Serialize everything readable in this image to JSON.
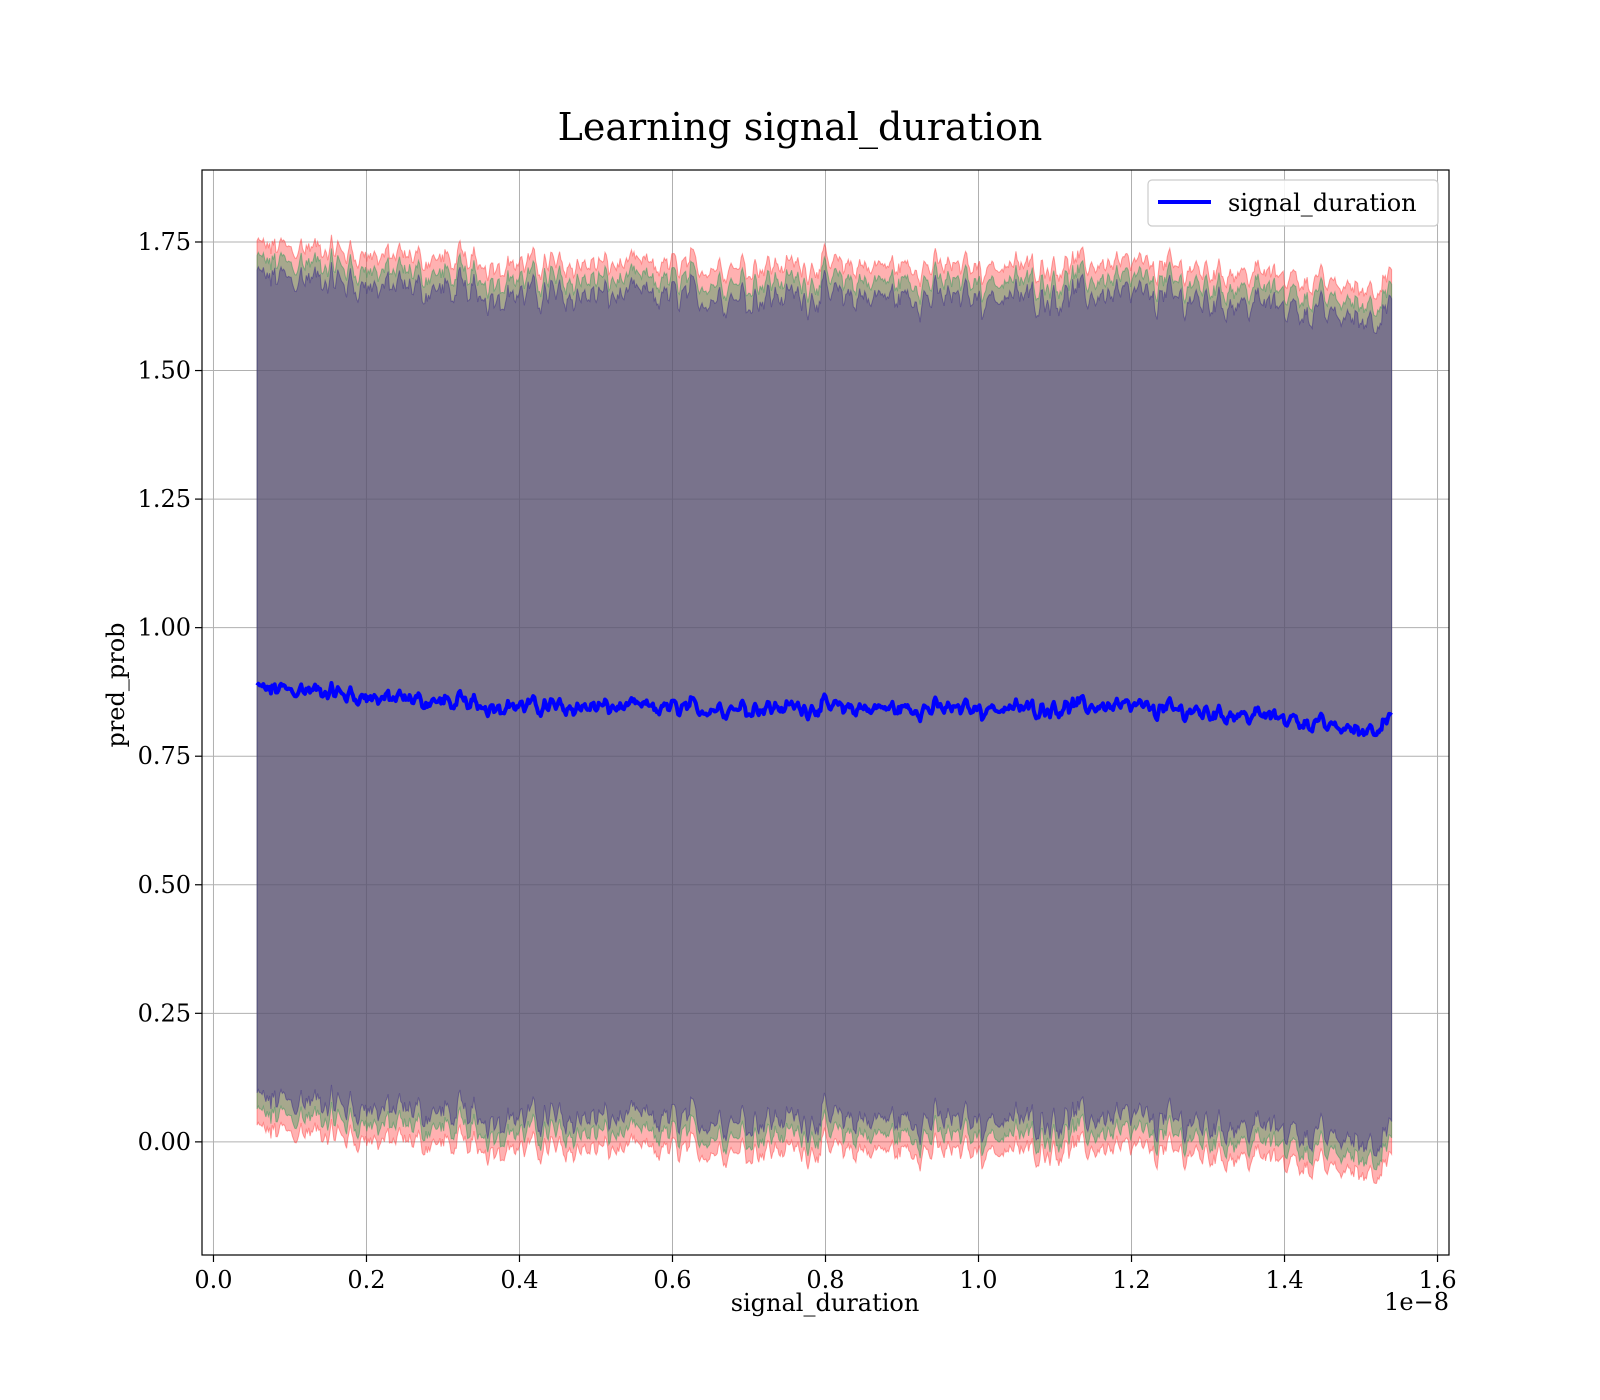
{
  "chart_data": {
    "type": "line",
    "title": "Learning signal_duration",
    "xlabel": "signal_duration",
    "ylabel": "pred_prob",
    "x_offset_text": "1e−8",
    "xlim": [
      -0.015,
      1.615
    ],
    "ylim": [
      -0.22,
      1.89
    ],
    "x_ticks": [
      0.0,
      0.2,
      0.4,
      0.6,
      0.8,
      1.0,
      1.2,
      1.4,
      1.6
    ],
    "x_tick_labels": [
      "0.0",
      "0.2",
      "0.4",
      "0.6",
      "0.8",
      "1.0",
      "1.2",
      "1.4",
      "1.6"
    ],
    "y_ticks": [
      0.0,
      0.25,
      0.5,
      0.75,
      1.0,
      1.25,
      1.5,
      1.75
    ],
    "y_tick_labels": [
      "0.00",
      "0.25",
      "0.50",
      "0.75",
      "1.00",
      "1.25",
      "1.50",
      "1.75"
    ],
    "grid": true,
    "legend_position": "top-right",
    "x_range": [
      0.057,
      1.54
    ],
    "series": [
      {
        "name": "signal_duration",
        "color": "#0000ff",
        "x": [
          0.057,
          0.1,
          0.15,
          0.2,
          0.25,
          0.3,
          0.35,
          0.4,
          0.45,
          0.5,
          0.55,
          0.6,
          0.65,
          0.7,
          0.75,
          0.8,
          0.85,
          0.9,
          0.95,
          1.0,
          1.05,
          1.1,
          1.15,
          1.2,
          1.25,
          1.3,
          1.35,
          1.4,
          1.45,
          1.5,
          1.54
        ],
        "y": [
          0.88,
          0.88,
          0.875,
          0.865,
          0.86,
          0.855,
          0.85,
          0.848,
          0.846,
          0.845,
          0.845,
          0.843,
          0.843,
          0.845,
          0.845,
          0.845,
          0.843,
          0.842,
          0.843,
          0.843,
          0.843,
          0.845,
          0.848,
          0.845,
          0.84,
          0.835,
          0.83,
          0.825,
          0.81,
          0.8,
          0.82
        ]
      }
    ],
    "bands": [
      {
        "color": "#ff4444",
        "x": [
          0.057,
          0.1,
          0.15,
          0.2,
          0.25,
          0.3,
          0.35,
          0.4,
          0.45,
          0.5,
          0.55,
          0.6,
          0.65,
          0.7,
          0.75,
          0.8,
          0.85,
          0.9,
          0.95,
          1.0,
          1.05,
          1.1,
          1.15,
          1.2,
          1.25,
          1.3,
          1.35,
          1.4,
          1.45,
          1.5,
          1.54
        ],
        "upper": [
          1.74,
          1.74,
          1.735,
          1.725,
          1.72,
          1.715,
          1.71,
          1.708,
          1.706,
          1.705,
          1.705,
          1.703,
          1.703,
          1.705,
          1.705,
          1.705,
          1.703,
          1.702,
          1.703,
          1.703,
          1.703,
          1.705,
          1.708,
          1.705,
          1.7,
          1.695,
          1.69,
          1.685,
          1.67,
          1.66,
          1.68
        ],
        "lower": [
          0.02,
          0.02,
          0.015,
          0.005,
          0.0,
          -0.005,
          -0.01,
          -0.012,
          -0.014,
          -0.015,
          -0.015,
          -0.017,
          -0.017,
          -0.015,
          -0.015,
          -0.015,
          -0.017,
          -0.018,
          -0.017,
          -0.017,
          -0.017,
          -0.015,
          -0.012,
          -0.015,
          -0.02,
          -0.025,
          -0.03,
          -0.035,
          -0.05,
          -0.06,
          -0.04
        ]
      },
      {
        "color": "#2e9a5a",
        "x": [
          0.057,
          0.1,
          0.15,
          0.2,
          0.25,
          0.3,
          0.35,
          0.4,
          0.45,
          0.5,
          0.55,
          0.6,
          0.65,
          0.7,
          0.75,
          0.8,
          0.85,
          0.9,
          0.95,
          1.0,
          1.05,
          1.1,
          1.15,
          1.2,
          1.25,
          1.3,
          1.35,
          1.4,
          1.45,
          1.5,
          1.54
        ],
        "upper": [
          1.71,
          1.71,
          1.705,
          1.695,
          1.69,
          1.685,
          1.68,
          1.678,
          1.676,
          1.675,
          1.675,
          1.673,
          1.673,
          1.675,
          1.675,
          1.675,
          1.673,
          1.672,
          1.673,
          1.673,
          1.673,
          1.675,
          1.678,
          1.675,
          1.67,
          1.665,
          1.66,
          1.655,
          1.64,
          1.63,
          1.65
        ],
        "lower": [
          0.05,
          0.05,
          0.045,
          0.035,
          0.03,
          0.025,
          0.02,
          0.018,
          0.016,
          0.015,
          0.015,
          0.013,
          0.013,
          0.015,
          0.015,
          0.015,
          0.013,
          0.012,
          0.013,
          0.013,
          0.013,
          0.015,
          0.018,
          0.015,
          0.01,
          0.005,
          0.0,
          -0.005,
          -0.02,
          -0.03,
          -0.01
        ]
      },
      {
        "color": "#3a2a8a",
        "x": [
          0.057,
          0.1,
          0.15,
          0.2,
          0.25,
          0.3,
          0.35,
          0.4,
          0.45,
          0.5,
          0.55,
          0.6,
          0.65,
          0.7,
          0.75,
          0.8,
          0.85,
          0.9,
          0.95,
          1.0,
          1.05,
          1.1,
          1.15,
          1.2,
          1.25,
          1.3,
          1.35,
          1.4,
          1.45,
          1.5,
          1.54
        ],
        "upper": [
          1.68,
          1.68,
          1.675,
          1.665,
          1.66,
          1.655,
          1.65,
          1.648,
          1.646,
          1.645,
          1.645,
          1.643,
          1.643,
          1.645,
          1.645,
          1.645,
          1.643,
          1.642,
          1.643,
          1.643,
          1.643,
          1.645,
          1.648,
          1.645,
          1.64,
          1.635,
          1.63,
          1.625,
          1.61,
          1.6,
          1.62
        ],
        "lower": [
          0.08,
          0.08,
          0.075,
          0.065,
          0.06,
          0.055,
          0.05,
          0.048,
          0.046,
          0.045,
          0.045,
          0.043,
          0.043,
          0.045,
          0.045,
          0.045,
          0.043,
          0.042,
          0.043,
          0.043,
          0.043,
          0.045,
          0.048,
          0.045,
          0.04,
          0.035,
          0.03,
          0.025,
          0.01,
          0.0,
          0.02
        ]
      }
    ]
  }
}
